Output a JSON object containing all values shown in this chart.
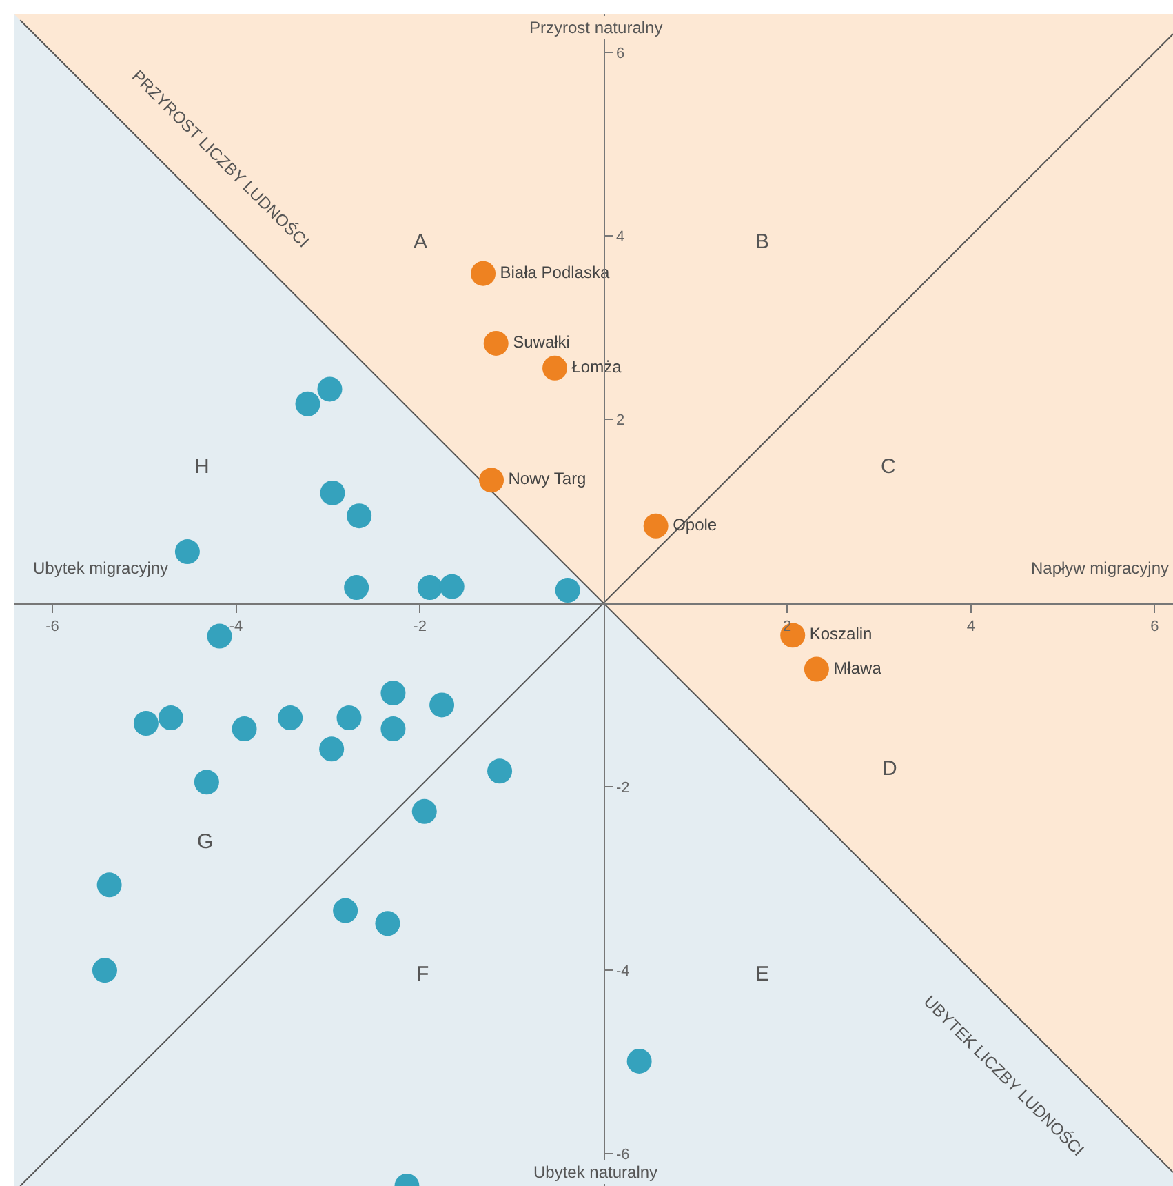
{
  "chart_data": {
    "type": "scatter",
    "xlim": [
      -6.42,
      6.2
    ],
    "ylim": [
      -6.35,
      6.42
    ],
    "xticks": [
      -6,
      -4,
      -2,
      2,
      4,
      6
    ],
    "yticks": [
      -6,
      -4,
      -2,
      2,
      4,
      6
    ],
    "grid": false,
    "marker": "circle",
    "series": [
      {
        "type": "line",
        "marker": "none",
        "color": "#555555",
        "x": [
          -6.35,
          6.2
        ],
        "values": [
          6.35,
          -6.2
        ]
      },
      {
        "type": "line",
        "marker": "none",
        "color": "#555555",
        "x": [
          -6.35,
          6.2
        ],
        "values": [
          -6.35,
          6.2
        ]
      },
      {
        "color": "#ee8221",
        "x": [
          -1.31,
          -1.17,
          -0.53,
          -1.22,
          0.57,
          2.06,
          2.32
        ],
        "values": [
          3.59,
          2.83,
          2.56,
          1.34,
          0.84,
          -0.35,
          -0.72
        ],
        "value_labels": [
          "Biała Podlaska",
          "Suwałki",
          "Łomża",
          "Nowy Targ",
          "Opole",
          "Koszalin",
          "Mława"
        ]
      },
      {
        "color": "#35a2bd",
        "x": [
          -2.98,
          -3.22,
          -2.95,
          -2.66,
          -4.53,
          -2.69,
          -1.89,
          -1.65,
          -0.39,
          -4.18,
          -4.98,
          -4.71,
          -3.91,
          -3.41,
          -2.77,
          -2.29,
          -2.29,
          -1.76,
          -2.96,
          -4.32,
          -1.13,
          -1.95,
          -5.38,
          -5.43,
          -2.81,
          -2.35,
          0.39,
          -2.14
        ],
        "values": [
          2.33,
          2.17,
          1.2,
          0.95,
          0.56,
          0.17,
          0.17,
          0.18,
          0.14,
          -0.36,
          -1.31,
          -1.25,
          -1.37,
          -1.25,
          -1.25,
          -0.98,
          -1.37,
          -1.11,
          -1.59,
          -1.95,
          -1.83,
          -2.27,
          -3.07,
          -4.0,
          -3.35,
          -3.49,
          -4.99,
          -6.35
        ]
      }
    ],
    "annotations": [
      "A",
      "B",
      "C",
      "D",
      "E",
      "F",
      "G",
      "H",
      "PRZYROST LICZBY LUDNOŚCI",
      "UBYTEK LICZBY LUDNOŚCI",
      "Przyrost naturalny",
      "Ubytek naturalny",
      "Ubytek migracyjny",
      "Napływ migracyjny"
    ]
  }
}
